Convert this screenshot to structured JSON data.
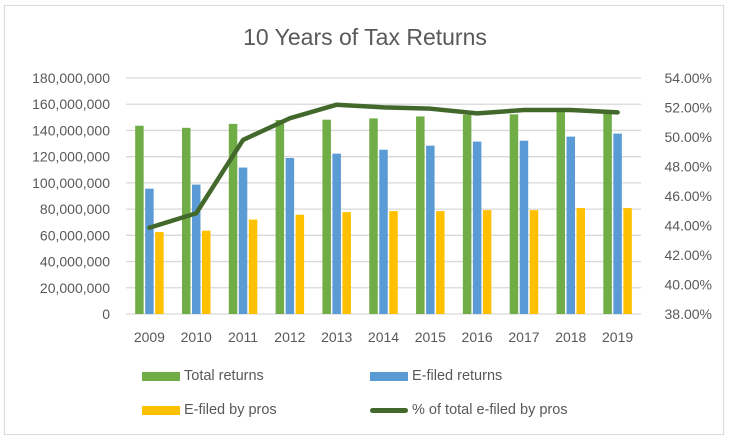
{
  "chart_data": {
    "type": "bar",
    "title": "10 Years of Tax Returns",
    "xlabel": "",
    "ylabel": "",
    "y2label": "",
    "categories": [
      "2009",
      "2010",
      "2011",
      "2012",
      "2013",
      "2014",
      "2015",
      "2016",
      "2017",
      "2018",
      "2019"
    ],
    "ylim": [
      0,
      180000000
    ],
    "y2lim": [
      0.38,
      0.54
    ],
    "yticks": [
      "0",
      "20,000,000",
      "40,000,000",
      "60,000,000",
      "80,000,000",
      "100,000,000",
      "120,000,000",
      "140,000,000",
      "160,000,000",
      "180,000,000"
    ],
    "y2ticks": [
      "38.00%",
      "40.00%",
      "42.00%",
      "44.00%",
      "46.00%",
      "48.00%",
      "50.00%",
      "52.00%",
      "54.00%"
    ],
    "grid": true,
    "legend_position": "bottom",
    "series": [
      {
        "name": "Total returns",
        "type": "bar",
        "axis": "left",
        "color": "#70ad47",
        "values": [
          143600000,
          142000000,
          145000000,
          148000000,
          148200000,
          149200000,
          150700000,
          152000000,
          152300000,
          154000000,
          153300000
        ]
      },
      {
        "name": "E-filed returns",
        "type": "bar",
        "axis": "left",
        "color": "#5b9bd5",
        "values": [
          95600000,
          98700000,
          111700000,
          119000000,
          122300000,
          125300000,
          128400000,
          131500000,
          132200000,
          135300000,
          137600000
        ]
      },
      {
        "name": "E-filed by pros",
        "type": "bar",
        "axis": "left",
        "color": "#ffc000",
        "values": [
          62500000,
          63500000,
          72000000,
          75700000,
          77700000,
          78500000,
          78500000,
          79200000,
          79200000,
          80800000,
          80800000
        ]
      },
      {
        "name": "% of total e-filed by pros",
        "type": "line",
        "axis": "right",
        "color": "#43682b",
        "values": [
          0.4385,
          0.4483,
          0.498,
          0.5127,
          0.5219,
          0.5201,
          0.5192,
          0.516,
          0.5183,
          0.5183,
          0.5167
        ]
      }
    ]
  },
  "legend": {
    "items": [
      {
        "label": "Total returns",
        "color": "#70ad47",
        "kind": "bar"
      },
      {
        "label": "E-filed returns",
        "color": "#5b9bd5",
        "kind": "bar"
      },
      {
        "label": "E-filed by pros",
        "color": "#ffc000",
        "kind": "bar"
      },
      {
        "label": "% of total e-filed by pros",
        "color": "#43682b",
        "kind": "line"
      }
    ]
  }
}
